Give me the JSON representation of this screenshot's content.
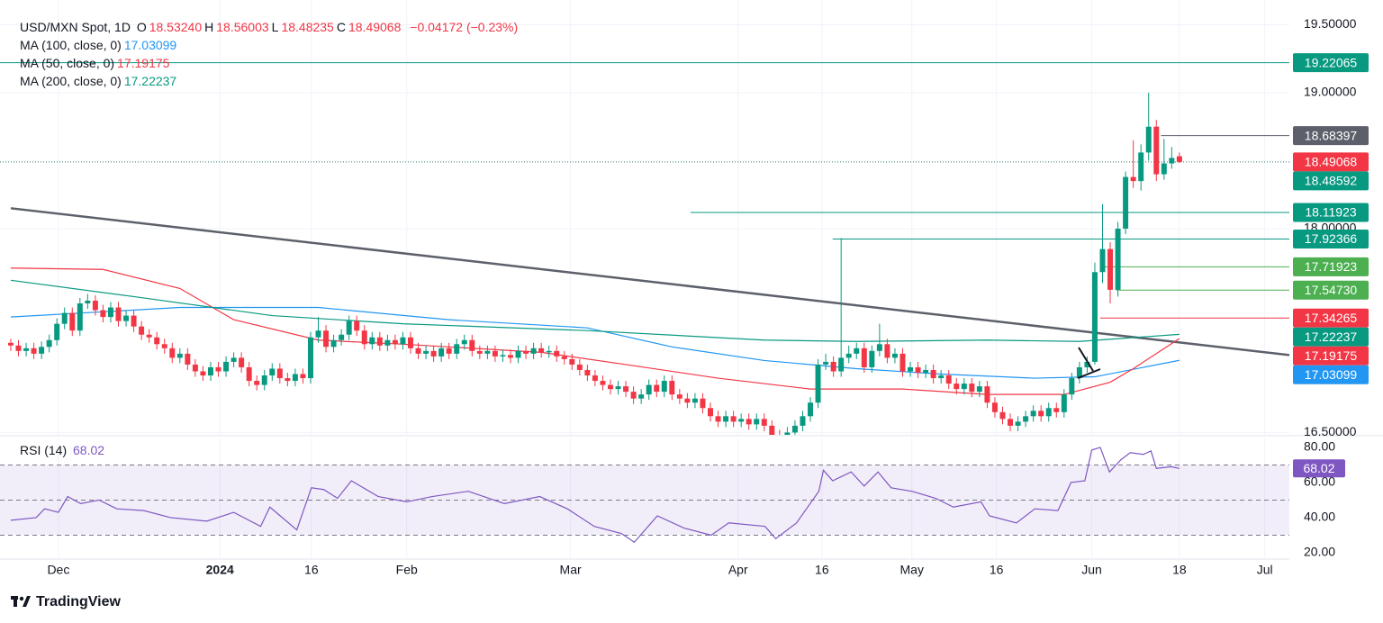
{
  "chart_data": {
    "type": "candlestick",
    "symbol": "USD/MXN Spot, 1D",
    "ohlc_keys": [
      "O",
      "H",
      "L",
      "C"
    ],
    "ohlc_labels": [
      "18.53240",
      "18.56003",
      "18.48235",
      "18.49068"
    ],
    "change": {
      "value": -0.04172,
      "label": "−0.04172 (−0.23%)"
    },
    "up_color": "#089981",
    "down_color": "#f23645",
    "xlim": [
      -1.4,
      166.3
    ],
    "ylim": [
      16.483,
      19.682
    ],
    "yticks": [
      {
        "value": 19.5,
        "label": "19.50000"
      },
      {
        "value": 19,
        "label": "19.00000"
      },
      {
        "value": 18,
        "label": "18.00000"
      },
      {
        "value": 16.5,
        "label": "16.50000"
      }
    ],
    "xticks": [
      {
        "value": 6.2,
        "label": "Dec"
      },
      {
        "value": 27.2,
        "label": "2024"
      },
      {
        "value": 39.1,
        "label": "16"
      },
      {
        "value": 51.5,
        "label": "Feb"
      },
      {
        "value": 72.8,
        "label": "Mar"
      },
      {
        "value": 94.6,
        "label": "Apr"
      },
      {
        "value": 105.5,
        "label": "16"
      },
      {
        "value": 117.2,
        "label": "May"
      },
      {
        "value": 128.2,
        "label": "16"
      },
      {
        "value": 140.6,
        "label": "Jun"
      },
      {
        "value": 152,
        "label": "18"
      },
      {
        "value": 163.1,
        "label": "Jul"
      }
    ],
    "grid": true,
    "candles": [
      [
        17.16,
        17.19,
        17.1,
        17.14
      ],
      [
        17.14,
        17.18,
        17.06,
        17.1
      ],
      [
        17.1,
        17.16,
        17.06,
        17.12
      ],
      [
        17.12,
        17.16,
        17.04,
        17.08
      ],
      [
        17.08,
        17.17,
        17.04,
        17.13
      ],
      [
        17.13,
        17.22,
        17.09,
        17.18
      ],
      [
        17.18,
        17.34,
        17.14,
        17.3
      ],
      [
        17.3,
        17.42,
        17.26,
        17.38
      ],
      [
        17.38,
        17.42,
        17.21,
        17.25
      ],
      [
        17.25,
        17.49,
        17.21,
        17.45
      ],
      [
        17.45,
        17.52,
        17.41,
        17.47
      ],
      [
        17.47,
        17.51,
        17.36,
        17.4
      ],
      [
        17.4,
        17.44,
        17.31,
        17.35
      ],
      [
        17.35,
        17.46,
        17.31,
        17.42
      ],
      [
        17.42,
        17.46,
        17.28,
        17.32
      ],
      [
        17.32,
        17.4,
        17.28,
        17.36
      ],
      [
        17.36,
        17.4,
        17.24,
        17.28
      ],
      [
        17.28,
        17.32,
        17.18,
        17.22
      ],
      [
        17.22,
        17.26,
        17.16,
        17.2
      ],
      [
        17.2,
        17.24,
        17.11,
        17.15
      ],
      [
        17.15,
        17.19,
        17.08,
        17.12
      ],
      [
        17.12,
        17.16,
        17.01,
        17.05
      ],
      [
        17.05,
        17.12,
        17.01,
        17.08
      ],
      [
        17.08,
        17.12,
        16.96,
        17.0
      ],
      [
        17.0,
        17.04,
        16.91,
        16.95
      ],
      [
        16.95,
        16.99,
        16.88,
        16.92
      ],
      [
        16.92,
        17.02,
        16.88,
        16.98
      ],
      [
        16.98,
        17.02,
        16.91,
        16.95
      ],
      [
        16.95,
        17.06,
        16.91,
        17.02
      ],
      [
        17.02,
        17.09,
        16.98,
        17.05
      ],
      [
        17.05,
        17.09,
        16.94,
        16.98
      ],
      [
        16.98,
        17.02,
        16.84,
        16.88
      ],
      [
        16.88,
        16.92,
        16.81,
        16.85
      ],
      [
        16.85,
        16.96,
        16.81,
        16.92
      ],
      [
        16.92,
        17.01,
        16.88,
        16.97
      ],
      [
        16.97,
        17.01,
        16.86,
        16.9
      ],
      [
        16.9,
        16.94,
        16.84,
        16.88
      ],
      [
        16.88,
        16.97,
        16.84,
        16.93
      ],
      [
        16.93,
        16.97,
        16.86,
        16.9
      ],
      [
        16.9,
        17.24,
        16.86,
        17.2
      ],
      [
        17.2,
        17.35,
        17.16,
        17.25
      ],
      [
        17.25,
        17.29,
        17.09,
        17.13
      ],
      [
        17.13,
        17.22,
        17.09,
        17.18
      ],
      [
        17.18,
        17.26,
        17.14,
        17.22
      ],
      [
        17.22,
        17.36,
        17.18,
        17.32
      ],
      [
        17.32,
        17.36,
        17.21,
        17.25
      ],
      [
        17.25,
        17.29,
        17.11,
        17.15
      ],
      [
        17.15,
        17.24,
        17.11,
        17.2
      ],
      [
        17.2,
        17.24,
        17.1,
        17.14
      ],
      [
        17.14,
        17.22,
        17.1,
        17.18
      ],
      [
        17.18,
        17.22,
        17.11,
        17.15
      ],
      [
        17.15,
        17.24,
        17.11,
        17.2
      ],
      [
        17.2,
        17.24,
        17.08,
        17.12
      ],
      [
        17.12,
        17.16,
        17.04,
        17.08
      ],
      [
        17.08,
        17.14,
        17.04,
        17.1
      ],
      [
        17.1,
        17.14,
        17.02,
        17.06
      ],
      [
        17.06,
        17.16,
        17.02,
        17.12
      ],
      [
        17.12,
        17.16,
        17.04,
        17.08
      ],
      [
        17.08,
        17.19,
        17.04,
        17.15
      ],
      [
        17.15,
        17.22,
        17.11,
        17.18
      ],
      [
        17.18,
        17.22,
        17.06,
        17.1
      ],
      [
        17.1,
        17.14,
        17.04,
        17.08
      ],
      [
        17.08,
        17.14,
        17.04,
        17.1
      ],
      [
        17.1,
        17.14,
        17.02,
        17.06
      ],
      [
        17.06,
        17.11,
        17.02,
        17.07
      ],
      [
        17.07,
        17.11,
        17.01,
        17.05
      ],
      [
        17.05,
        17.14,
        17.01,
        17.1
      ],
      [
        17.1,
        17.14,
        17.04,
        17.08
      ],
      [
        17.08,
        17.16,
        17.04,
        17.12
      ],
      [
        17.12,
        17.16,
        17.05,
        17.09
      ],
      [
        17.09,
        17.14,
        17.05,
        17.1
      ],
      [
        17.1,
        17.14,
        17.02,
        17.06
      ],
      [
        17.06,
        17.1,
        17.0,
        17.04
      ],
      [
        17.04,
        17.08,
        16.96,
        17.0
      ],
      [
        17.0,
        17.04,
        16.92,
        16.96
      ],
      [
        16.96,
        17.0,
        16.88,
        16.92
      ],
      [
        16.92,
        16.96,
        16.84,
        16.88
      ],
      [
        16.88,
        16.92,
        16.81,
        16.85
      ],
      [
        16.85,
        16.89,
        16.78,
        16.82
      ],
      [
        16.82,
        16.88,
        16.78,
        16.84
      ],
      [
        16.84,
        16.88,
        16.76,
        16.8
      ],
      [
        16.8,
        16.84,
        16.71,
        16.75
      ],
      [
        16.75,
        16.82,
        16.71,
        16.78
      ],
      [
        16.78,
        16.89,
        16.74,
        16.85
      ],
      [
        16.85,
        16.89,
        16.76,
        16.8
      ],
      [
        16.8,
        16.92,
        16.76,
        16.88
      ],
      [
        16.88,
        16.92,
        16.74,
        16.78
      ],
      [
        16.78,
        16.82,
        16.71,
        16.75
      ],
      [
        16.75,
        16.79,
        16.68,
        16.72
      ],
      [
        16.72,
        16.79,
        16.68,
        16.75
      ],
      [
        16.75,
        16.79,
        16.64,
        16.68
      ],
      [
        16.68,
        16.72,
        16.58,
        16.62
      ],
      [
        16.62,
        16.66,
        16.54,
        16.58
      ],
      [
        16.58,
        16.66,
        16.54,
        16.62
      ],
      [
        16.62,
        16.66,
        16.54,
        16.58
      ],
      [
        16.58,
        16.64,
        16.54,
        16.6
      ],
      [
        16.6,
        16.64,
        16.52,
        16.56
      ],
      [
        16.56,
        16.64,
        16.52,
        16.6
      ],
      [
        16.6,
        16.64,
        16.51,
        16.55
      ],
      [
        16.55,
        16.59,
        16.44,
        16.48
      ],
      [
        16.48,
        16.52,
        16.41,
        16.45
      ],
      [
        16.45,
        16.54,
        16.41,
        16.5
      ],
      [
        16.5,
        16.59,
        16.46,
        16.55
      ],
      [
        16.55,
        16.66,
        16.51,
        16.62
      ],
      [
        16.62,
        16.76,
        16.58,
        16.72
      ],
      [
        16.72,
        17.04,
        16.68,
        17.0
      ],
      [
        17.0,
        17.08,
        16.96,
        17.02
      ],
      [
        17.02,
        17.06,
        16.91,
        16.95
      ],
      [
        16.95,
        17.93,
        16.91,
        17.05
      ],
      [
        17.05,
        17.14,
        17.01,
        17.08
      ],
      [
        17.08,
        17.16,
        17.04,
        17.12
      ],
      [
        17.12,
        17.16,
        16.94,
        16.98
      ],
      [
        16.98,
        17.14,
        16.94,
        17.1
      ],
      [
        17.1,
        17.3,
        17.06,
        17.15
      ],
      [
        17.15,
        17.19,
        17.01,
        17.05
      ],
      [
        17.05,
        17.12,
        17.01,
        17.08
      ],
      [
        17.08,
        17.12,
        16.91,
        16.95
      ],
      [
        16.95,
        17.02,
        16.91,
        16.98
      ],
      [
        16.98,
        17.02,
        16.9,
        16.94
      ],
      [
        16.94,
        17.0,
        16.9,
        16.96
      ],
      [
        16.96,
        17.0,
        16.86,
        16.9
      ],
      [
        16.9,
        16.96,
        16.86,
        16.92
      ],
      [
        16.92,
        16.96,
        16.82,
        16.86
      ],
      [
        16.86,
        16.9,
        16.78,
        16.82
      ],
      [
        16.82,
        16.9,
        16.78,
        16.86
      ],
      [
        16.86,
        16.9,
        16.76,
        16.8
      ],
      [
        16.8,
        16.88,
        16.76,
        16.84
      ],
      [
        16.84,
        16.88,
        16.68,
        16.72
      ],
      [
        16.72,
        16.76,
        16.61,
        16.65
      ],
      [
        16.65,
        16.69,
        16.56,
        16.6
      ],
      [
        16.6,
        16.64,
        16.51,
        16.55
      ],
      [
        16.55,
        16.62,
        16.51,
        16.58
      ],
      [
        16.58,
        16.66,
        16.54,
        16.62
      ],
      [
        16.62,
        16.7,
        16.58,
        16.66
      ],
      [
        16.66,
        16.7,
        16.58,
        16.62
      ],
      [
        16.62,
        16.72,
        16.58,
        16.68
      ],
      [
        16.68,
        16.72,
        16.61,
        16.65
      ],
      [
        16.65,
        16.82,
        16.61,
        16.78
      ],
      [
        16.78,
        16.94,
        16.74,
        16.9
      ],
      [
        16.9,
        17.02,
        16.86,
        16.98
      ],
      [
        16.98,
        17.06,
        16.94,
        17.02
      ],
      [
        17.02,
        17.75,
        17.0,
        17.68
      ],
      [
        17.68,
        18.18,
        17.6,
        17.85
      ],
      [
        17.85,
        17.9,
        17.45,
        17.55
      ],
      [
        17.55,
        18.05,
        17.5,
        18.0
      ],
      [
        18.0,
        18.42,
        17.96,
        18.38
      ],
      [
        18.38,
        18.65,
        18.3,
        18.35
      ],
      [
        18.35,
        18.62,
        18.28,
        18.56
      ],
      [
        18.56,
        19.0,
        18.5,
        18.75
      ],
      [
        18.75,
        18.8,
        18.35,
        18.4
      ],
      [
        18.4,
        18.66,
        18.36,
        18.48
      ],
      [
        18.48,
        18.6,
        18.44,
        18.52
      ],
      [
        18.5324,
        18.56003,
        18.48235,
        18.49068
      ]
    ],
    "mas": [
      {
        "name": "MA (100, close, 0)",
        "color": "#2196f3",
        "x": [
          0,
          22,
          40,
          57,
          75,
          86,
          98,
          110,
          121,
          133,
          141,
          152
        ],
        "values": [
          17.35,
          17.42,
          17.42,
          17.33,
          17.27,
          17.13,
          17.03,
          16.97,
          16.93,
          16.9,
          16.91,
          17.03099
        ]
      },
      {
        "name": "MA (50, close, 0)",
        "color": "#f23645",
        "x": [
          0,
          12,
          22,
          29,
          40,
          51,
          69,
          80,
          92,
          104,
          116,
          127,
          137,
          143,
          146,
          152
        ],
        "values": [
          17.71,
          17.7,
          17.56,
          17.33,
          17.18,
          17.15,
          17.09,
          17.0,
          16.9,
          16.82,
          16.82,
          16.78,
          16.78,
          16.87,
          16.97,
          17.19175
        ]
      },
      {
        "name": "MA (200, close, 0)",
        "color": "#089981",
        "x": [
          0,
          16,
          34,
          51,
          75,
          98,
          110,
          127,
          139,
          152
        ],
        "values": [
          17.62,
          17.5,
          17.36,
          17.3,
          17.25,
          17.18,
          17.17,
          17.18,
          17.17,
          17.22237
        ]
      }
    ],
    "trendline": {
      "color": "#5d606b",
      "x": [
        0,
        166.3
      ],
      "values": [
        18.15,
        17.07
      ]
    },
    "levels": [
      {
        "value": 19.22065,
        "label": "19.22065",
        "color": "#089981",
        "start": -1.4
      },
      {
        "value": 18.68397,
        "label": "18.68397",
        "color": "#5d606b",
        "start": 149.6
      },
      {
        "value": 18.49068,
        "label": "18.49068",
        "color": "#f23645",
        "line_color": "#2a7a6f",
        "dotted": true,
        "start": -1.4
      },
      {
        "value": 18.48592,
        "label": "18.48592",
        "color": "#089981"
      },
      {
        "value": 18.11923,
        "label": "18.11923",
        "color": "#089981",
        "start": 88.4
      },
      {
        "value": 17.92366,
        "label": "17.92366",
        "color": "#089981",
        "start": 106.9
      },
      {
        "value": 17.71923,
        "label": "17.71923",
        "color": "#4caf50",
        "start": 141.7
      },
      {
        "value": 17.5473,
        "label": "17.54730",
        "color": "#4caf50",
        "start": 143.8
      },
      {
        "value": 17.34265,
        "label": "17.34265",
        "color": "#f23645",
        "start": 141.7
      }
    ],
    "rsi": {
      "name": "RSI (14)",
      "color": "#7e57c2",
      "ylim": [
        16.9,
        85.1
      ],
      "yticks": [
        {
          "value": 80,
          "label": "80.00"
        },
        {
          "value": 60,
          "label": "60.00"
        },
        {
          "value": 40,
          "label": "40.00"
        },
        {
          "value": 20,
          "label": "20.00"
        }
      ],
      "bands": [
        70,
        50,
        30
      ],
      "x": [
        0,
        3.3,
        4.4,
        6.2,
        7.4,
        9.1,
        11.5,
        13.8,
        17.3,
        20.8,
        25.5,
        29,
        32.5,
        33.7,
        37.2,
        39.1,
        40.7,
        42.5,
        44.3,
        47.8,
        51.5,
        54.8,
        59.5,
        64.2,
        68.8,
        72.4,
        75.9,
        79.4,
        81.1,
        84.1,
        87.6,
        91.1,
        93.4,
        98.1,
        99.5,
        102.2,
        105.1,
        105.7,
        106.9,
        109.3,
        111,
        112.8,
        114.5,
        117.2,
        120.3,
        122.6,
        126.2,
        127.3,
        130.8,
        133.2,
        136.2,
        137.9,
        139.7,
        140.6,
        141.7,
        142.9,
        144.4,
        145.6,
        147.3,
        148.3,
        149,
        150.9,
        152
      ],
      "values": [
        38.5,
        40,
        45,
        43,
        52,
        48,
        50,
        45,
        44,
        40,
        38,
        43,
        35,
        46,
        33,
        57,
        56,
        51,
        61,
        52,
        49,
        52,
        55,
        48,
        52,
        45,
        35,
        31,
        26,
        41,
        34,
        30,
        37,
        35,
        28,
        37,
        55,
        67,
        61,
        66,
        58,
        66,
        57,
        55,
        51,
        46,
        49,
        41,
        37,
        45,
        44,
        60,
        61,
        78.5,
        80,
        66,
        73,
        77,
        76,
        78,
        68,
        69,
        68.02
      ]
    },
    "brand": "TradingView"
  }
}
